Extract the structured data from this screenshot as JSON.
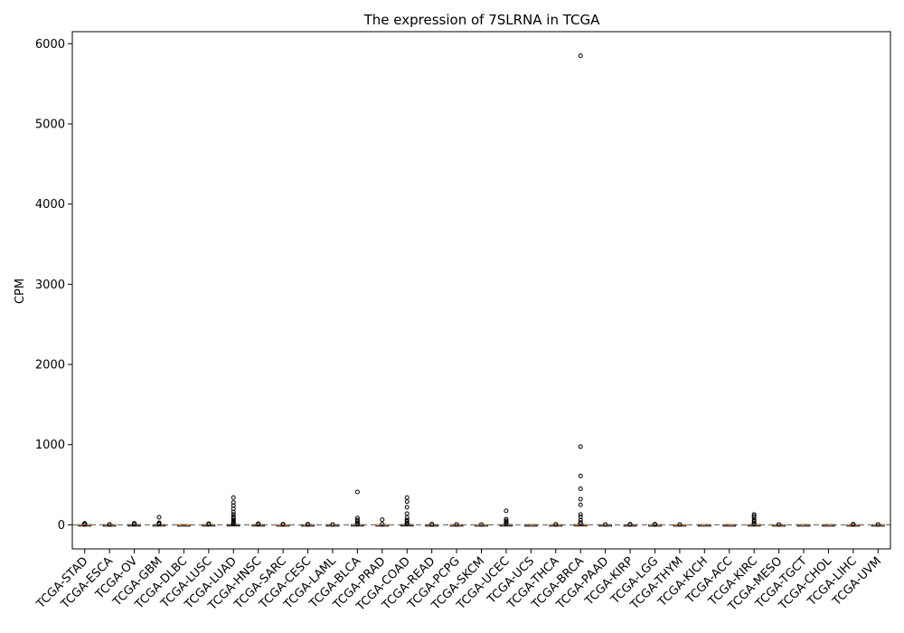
{
  "chart_data": {
    "type": "box",
    "title": "The expression of 7SLRNA in TCGA",
    "xlabel": "",
    "ylabel": "CPM",
    "ylim": [
      -300,
      6150
    ],
    "yticks": [
      0,
      1000,
      2000,
      3000,
      4000,
      5000,
      6000
    ],
    "grid": false,
    "categories": [
      "TCGA-STAD",
      "TCGA-ESCA",
      "TCGA-OV",
      "TCGA-GBM",
      "TCGA-DLBC",
      "TCGA-LUSC",
      "TCGA-LUAD",
      "TCGA-HNSC",
      "TCGA-SARC",
      "TCGA-CESC",
      "TCGA-LAML",
      "TCGA-BLCA",
      "TCGA-PRAD",
      "TCGA-COAD",
      "TCGA-READ",
      "TCGA-PCPG",
      "TCGA-SKCM",
      "TCGA-UCEC",
      "TCGA-UCS",
      "TCGA-THCA",
      "TCGA-BRCA",
      "TCGA-PAAD",
      "TCGA-KIRP",
      "TCGA-LGG",
      "TCGA-THYM",
      "TCGA-KICH",
      "TCGA-ACC",
      "TCGA-KIRC",
      "TCGA-MESO",
      "TCGA-TGCT",
      "TCGA-CHOL",
      "TCGA-LIHC",
      "TCGA-UVM"
    ],
    "boxes": [
      {
        "q1": 0,
        "median": 0,
        "q3": 2,
        "whisker_low": 0,
        "whisker_high": 5,
        "outliers": [
          6,
          8,
          10,
          12,
          15,
          18
        ]
      },
      {
        "q1": 0,
        "median": 0,
        "q3": 1,
        "whisker_low": 0,
        "whisker_high": 2,
        "outliers": [
          3,
          4
        ]
      },
      {
        "q1": 0,
        "median": 0,
        "q3": 2,
        "whisker_low": 0,
        "whisker_high": 5,
        "outliers": [
          7,
          10,
          14,
          18
        ]
      },
      {
        "q1": 0,
        "median": 0,
        "q3": 2,
        "whisker_low": 0,
        "whisker_high": 5,
        "outliers": [
          8,
          12,
          18,
          25,
          95
        ]
      },
      {
        "q1": 0,
        "median": 0,
        "q3": 1,
        "whisker_low": 0,
        "whisker_high": 2,
        "outliers": []
      },
      {
        "q1": 0,
        "median": 0,
        "q3": 2,
        "whisker_low": 0,
        "whisker_high": 5,
        "outliers": [
          7,
          10,
          15
        ]
      },
      {
        "q1": 0,
        "median": 0,
        "q3": 3,
        "whisker_low": 0,
        "whisker_high": 8,
        "outliers": [
          12,
          20,
          30,
          45,
          60,
          80,
          100,
          130,
          160,
          200,
          240,
          280,
          340
        ]
      },
      {
        "q1": 0,
        "median": 0,
        "q3": 2,
        "whisker_low": 0,
        "whisker_high": 5,
        "outliers": [
          7,
          10,
          14
        ]
      },
      {
        "q1": 0,
        "median": 0,
        "q3": 1,
        "whisker_low": 0,
        "whisker_high": 3,
        "outliers": [
          5,
          8
        ]
      },
      {
        "q1": 0,
        "median": 0,
        "q3": 1,
        "whisker_low": 0,
        "whisker_high": 3,
        "outliers": [
          5,
          8
        ]
      },
      {
        "q1": 0,
        "median": 0,
        "q3": 1,
        "whisker_low": 0,
        "whisker_high": 3,
        "outliers": [
          5
        ]
      },
      {
        "q1": 0,
        "median": 0,
        "q3": 2,
        "whisker_low": 0,
        "whisker_high": 5,
        "outliers": [
          10,
          20,
          40,
          60,
          85,
          410
        ]
      },
      {
        "q1": 0,
        "median": 0,
        "q3": 1,
        "whisker_low": 0,
        "whisker_high": 3,
        "outliers": [
          8,
          65
        ]
      },
      {
        "q1": 0,
        "median": 0,
        "q3": 3,
        "whisker_low": 0,
        "whisker_high": 8,
        "outliers": [
          12,
          20,
          40,
          60,
          90,
          140,
          220,
          290,
          340
        ]
      },
      {
        "q1": 0,
        "median": 0,
        "q3": 1,
        "whisker_low": 0,
        "whisker_high": 3,
        "outliers": [
          5,
          8
        ]
      },
      {
        "q1": 0,
        "median": 0,
        "q3": 1,
        "whisker_low": 0,
        "whisker_high": 3,
        "outliers": [
          5
        ]
      },
      {
        "q1": 0,
        "median": 0,
        "q3": 1,
        "whisker_low": 0,
        "whisker_high": 2,
        "outliers": [
          4
        ]
      },
      {
        "q1": 0,
        "median": 0,
        "q3": 2,
        "whisker_low": 0,
        "whisker_high": 5,
        "outliers": [
          10,
          20,
          35,
          50,
          70,
          175
        ]
      },
      {
        "q1": 0,
        "median": 0,
        "q3": 1,
        "whisker_low": 0,
        "whisker_high": 2,
        "outliers": []
      },
      {
        "q1": 0,
        "median": 0,
        "q3": 1,
        "whisker_low": 0,
        "whisker_high": 2,
        "outliers": [
          4,
          6
        ]
      },
      {
        "q1": 0,
        "median": 0,
        "q3": 3,
        "whisker_low": 0,
        "whisker_high": 8,
        "outliers": [
          15,
          30,
          60,
          100,
          130,
          250,
          320,
          450,
          610,
          975,
          5850
        ]
      },
      {
        "q1": 0,
        "median": 0,
        "q3": 1,
        "whisker_low": 0,
        "whisker_high": 2,
        "outliers": [
          4
        ]
      },
      {
        "q1": 0,
        "median": 0,
        "q3": 1,
        "whisker_low": 0,
        "whisker_high": 3,
        "outliers": [
          5,
          8
        ]
      },
      {
        "q1": 0,
        "median": 0,
        "q3": 1,
        "whisker_low": 0,
        "whisker_high": 3,
        "outliers": [
          5,
          8
        ]
      },
      {
        "q1": 0,
        "median": 0,
        "q3": 1,
        "whisker_low": 0,
        "whisker_high": 2,
        "outliers": [
          4
        ]
      },
      {
        "q1": 0,
        "median": 0,
        "q3": 1,
        "whisker_low": 0,
        "whisker_high": 2,
        "outliers": []
      },
      {
        "q1": 0,
        "median": 0,
        "q3": 1,
        "whisker_low": 0,
        "whisker_high": 2,
        "outliers": []
      },
      {
        "q1": 0,
        "median": 0,
        "q3": 2,
        "whisker_low": 0,
        "whisker_high": 5,
        "outliers": [
          10,
          20,
          40,
          60,
          90,
          110,
          130
        ]
      },
      {
        "q1": 0,
        "median": 0,
        "q3": 1,
        "whisker_low": 0,
        "whisker_high": 3,
        "outliers": [
          5
        ]
      },
      {
        "q1": 0,
        "median": 0,
        "q3": 1,
        "whisker_low": 0,
        "whisker_high": 2,
        "outliers": []
      },
      {
        "q1": 0,
        "median": 0,
        "q3": 1,
        "whisker_low": 0,
        "whisker_high": 2,
        "outliers": []
      },
      {
        "q1": 0,
        "median": 0,
        "q3": 1,
        "whisker_low": 0,
        "whisker_high": 3,
        "outliers": [
          5,
          8
        ]
      },
      {
        "q1": 0,
        "median": 0,
        "q3": 1,
        "whisker_low": 0,
        "whisker_high": 3,
        "outliers": [
          5
        ]
      }
    ]
  }
}
